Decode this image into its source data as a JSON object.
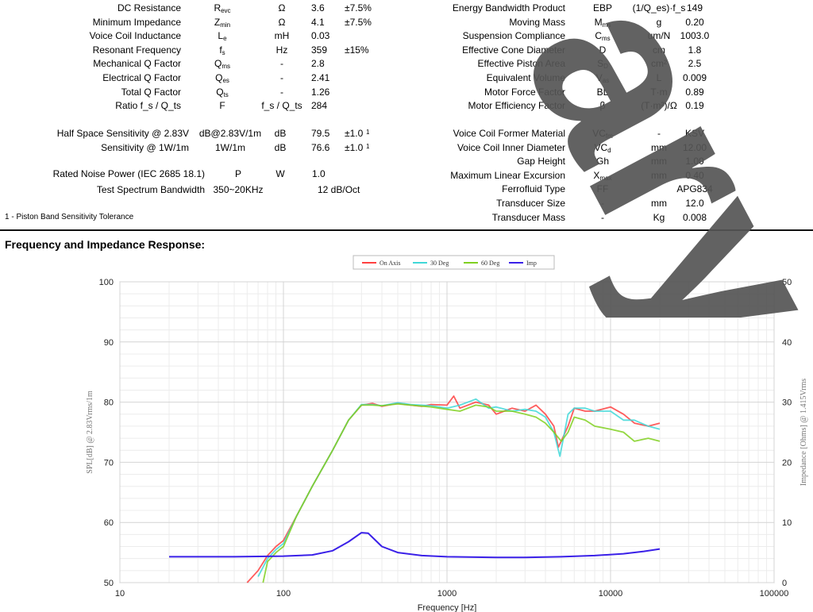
{
  "specs_left": [
    {
      "name": "DC Resistance",
      "sym": "R",
      "sub": "evc",
      "unit": "Ω",
      "value": "3.6",
      "tol": "±7.5%"
    },
    {
      "name": "Minimum Impedance",
      "sym": "Z",
      "sub": "min",
      "unit": "Ω",
      "value": "4.1",
      "tol": "±7.5%"
    },
    {
      "name": "Voice Coil Inductance",
      "sym": "L",
      "sub": "e",
      "unit": "mH",
      "value": "0.03",
      "tol": ""
    },
    {
      "name": "Resonant Frequency",
      "sym": "f",
      "sub": "s",
      "unit": "Hz",
      "value": "359",
      "tol": "±15%"
    },
    {
      "name": "Mechanical Q Factor",
      "sym": "Q",
      "sub": "ms",
      "unit": "-",
      "value": "2.8",
      "tol": ""
    },
    {
      "name": "Electrical Q Factor",
      "sym": "Q",
      "sub": "es",
      "unit": "-",
      "value": "2.41",
      "tol": ""
    },
    {
      "name": "Total Q Factor",
      "sym": "Q",
      "sub": "ts",
      "unit": "-",
      "value": "1.26",
      "tol": ""
    },
    {
      "name": "Ratio f_s / Q_ts",
      "sym": "F",
      "sub": "",
      "unit": "f_s / Q_ts",
      "value": "284",
      "tol": ""
    }
  ],
  "sensitivity": [
    {
      "name": "Half Space Sensitivity @ 2.83V",
      "sym": "dB@2.83V/1m",
      "unit": "dB",
      "value": "79.5",
      "tol": "±1.0",
      "note": "1"
    },
    {
      "name": "Sensitivity @ 1W/1m",
      "sym": "1W/1m",
      "unit": "dB",
      "value": "76.6",
      "tol": "±1.0",
      "note": "1"
    }
  ],
  "power": [
    {
      "name": "Rated Noise Power (IEC 2685 18.1)",
      "sym": "P",
      "unit": "W",
      "value": "1.0"
    },
    {
      "name": "Test Spectrum Bandwidth",
      "sym": "350~20KHz",
      "unit": "",
      "value": "12 dB/Oct"
    }
  ],
  "footnote": "1 - Piston Band Sensitivity Tolerance",
  "specs_right": [
    {
      "name": "Energy Bandwidth Product",
      "sym": "EBP",
      "sub": "",
      "unit": "(1/Q_es)·f_s",
      "value": "149"
    },
    {
      "name": "Moving Mass",
      "sym": "M",
      "sub": "ms",
      "unit": "g",
      "value": "0.20"
    },
    {
      "name": "Suspension Compliance",
      "sym": "C",
      "sub": "ms",
      "unit": "um/N",
      "value": "1003.0"
    },
    {
      "name": "Effective Cone Diameter",
      "sym": "D",
      "sub": "",
      "unit": "cm",
      "value": "1.8"
    },
    {
      "name": "Effective Piston Area",
      "sym": "S",
      "sub": "D",
      "unit": "cm²",
      "value": "2.5"
    },
    {
      "name": "Equivalent Volume",
      "sym": "V",
      "sub": "as",
      "unit": "L",
      "value": "0.009"
    },
    {
      "name": "Motor Force Factor",
      "sym": "BL",
      "sub": "",
      "unit": "T·m",
      "value": "0.89"
    },
    {
      "name": "Motor Efficiency Factor",
      "sym": "β",
      "sub": "",
      "unit": "(T·m²)/Ω",
      "value": "0.19"
    }
  ],
  "specs_right2": [
    {
      "name": "Voice Coil Former Material",
      "sym": "VC",
      "sub": "fm",
      "unit": "-",
      "value": "KSV"
    },
    {
      "name": "Voice Coil Inner Diameter",
      "sym": "VC",
      "sub": "d",
      "unit": "mm",
      "value": "12.00"
    },
    {
      "name": "Gap Height",
      "sym": "Gh",
      "sub": "",
      "unit": "mm",
      "value": "1.00"
    },
    {
      "name": "Maximum Linear Excursion",
      "sym": "X",
      "sub": "max",
      "unit": "mm",
      "value": "0.40"
    },
    {
      "name": "Ferrofluid Type",
      "sym": "FF",
      "sub": "",
      "unit": "",
      "value": "APG834"
    },
    {
      "name": "Transducer Size",
      "sym": "-",
      "sub": "",
      "unit": "mm",
      "value": "12.0"
    },
    {
      "name": "Transducer Mass",
      "sym": "-",
      "sub": "",
      "unit": "Kg",
      "value": "0.008"
    }
  ],
  "section_title": "Frequency and Impedance Response:",
  "watermark": "ary",
  "chart_data": {
    "type": "line",
    "xlabel": "Frequency [Hz]",
    "ylabel": "SPL[dB] @ 2.83Vrms/1m",
    "y2label": "Impedance [Ohms] @ 1.415Vrms",
    "xscale": "log",
    "xlim": [
      10,
      100000
    ],
    "ylim": [
      50,
      100
    ],
    "y2lim": [
      0,
      50
    ],
    "x_ticks": [
      "10",
      "100",
      "1000",
      "10000",
      "100000"
    ],
    "y_ticks": [
      "50",
      "60",
      "70",
      "80",
      "90",
      "100"
    ],
    "y2_ticks": [
      "0",
      "10",
      "20",
      "30",
      "40",
      "50"
    ],
    "legend_position": "top-center",
    "grid": true,
    "series": [
      {
        "name": "On Axis",
        "axis": "left",
        "color": "#ff4040",
        "points": [
          [
            60,
            50
          ],
          [
            70,
            52
          ],
          [
            80,
            54.5
          ],
          [
            90,
            56
          ],
          [
            100,
            57
          ],
          [
            120,
            61
          ],
          [
            150,
            66
          ],
          [
            200,
            72
          ],
          [
            250,
            77
          ],
          [
            300,
            79.5
          ],
          [
            350,
            79.8
          ],
          [
            400,
            79.3
          ],
          [
            500,
            79.8
          ],
          [
            600,
            79.5
          ],
          [
            700,
            79.3
          ],
          [
            800,
            79.6
          ],
          [
            1000,
            79.5
          ],
          [
            1100,
            81
          ],
          [
            1200,
            79
          ],
          [
            1500,
            80
          ],
          [
            1800,
            79.5
          ],
          [
            2000,
            78
          ],
          [
            2500,
            79
          ],
          [
            3000,
            78.5
          ],
          [
            3500,
            79.5
          ],
          [
            4000,
            78
          ],
          [
            4500,
            76
          ],
          [
            4800,
            72.5
          ],
          [
            5500,
            76
          ],
          [
            6000,
            79
          ],
          [
            7000,
            78.5
          ],
          [
            8000,
            78.5
          ],
          [
            10000,
            79.2
          ],
          [
            12000,
            78
          ],
          [
            14000,
            76.5
          ],
          [
            17000,
            76
          ],
          [
            20000,
            76.5
          ]
        ]
      },
      {
        "name": "30 Deg",
        "axis": "left",
        "color": "#40d8d8",
        "points": [
          [
            70,
            51
          ],
          [
            80,
            54
          ],
          [
            90,
            55.5
          ],
          [
            100,
            56.5
          ],
          [
            120,
            61
          ],
          [
            150,
            66
          ],
          [
            200,
            72
          ],
          [
            250,
            77
          ],
          [
            300,
            79.6
          ],
          [
            350,
            79.6
          ],
          [
            400,
            79.4
          ],
          [
            500,
            79.9
          ],
          [
            600,
            79.6
          ],
          [
            800,
            79.4
          ],
          [
            1000,
            79
          ],
          [
            1200,
            79.5
          ],
          [
            1500,
            80.5
          ],
          [
            1800,
            79
          ],
          [
            2000,
            79.2
          ],
          [
            2500,
            78.5
          ],
          [
            3000,
            78.8
          ],
          [
            3500,
            78.5
          ],
          [
            4000,
            77.5
          ],
          [
            4500,
            75
          ],
          [
            4900,
            71
          ],
          [
            5500,
            78
          ],
          [
            6000,
            79
          ],
          [
            7000,
            79
          ],
          [
            8000,
            78.5
          ],
          [
            10000,
            78.5
          ],
          [
            12000,
            77
          ],
          [
            14000,
            77
          ],
          [
            17000,
            76
          ],
          [
            20000,
            75.5
          ]
        ]
      },
      {
        "name": "60 Deg",
        "axis": "left",
        "color": "#80d020",
        "points": [
          [
            75,
            50
          ],
          [
            80,
            53.5
          ],
          [
            90,
            55
          ],
          [
            100,
            56
          ],
          [
            120,
            61
          ],
          [
            150,
            66
          ],
          [
            200,
            72
          ],
          [
            250,
            77
          ],
          [
            300,
            79.5
          ],
          [
            350,
            79.5
          ],
          [
            400,
            79.4
          ],
          [
            500,
            79.7
          ],
          [
            600,
            79.5
          ],
          [
            800,
            79.2
          ],
          [
            1000,
            78.8
          ],
          [
            1200,
            78.5
          ],
          [
            1500,
            79.5
          ],
          [
            1800,
            79.2
          ],
          [
            2000,
            78.5
          ],
          [
            2500,
            78.5
          ],
          [
            3000,
            78
          ],
          [
            3500,
            77.5
          ],
          [
            4000,
            76.5
          ],
          [
            4500,
            75
          ],
          [
            5000,
            73.5
          ],
          [
            5500,
            75
          ],
          [
            6000,
            77.5
          ],
          [
            7000,
            77
          ],
          [
            8000,
            76
          ],
          [
            10000,
            75.5
          ],
          [
            12000,
            75
          ],
          [
            14000,
            73.5
          ],
          [
            17000,
            74
          ],
          [
            20000,
            73.5
          ]
        ]
      },
      {
        "name": "Imp",
        "axis": "right",
        "color": "#3a20e8",
        "points": [
          [
            20,
            4.3
          ],
          [
            50,
            4.3
          ],
          [
            100,
            4.4
          ],
          [
            150,
            4.6
          ],
          [
            200,
            5.3
          ],
          [
            250,
            6.8
          ],
          [
            300,
            8.3
          ],
          [
            330,
            8.2
          ],
          [
            360,
            7.2
          ],
          [
            400,
            6
          ],
          [
            500,
            5
          ],
          [
            700,
            4.5
          ],
          [
            1000,
            4.3
          ],
          [
            2000,
            4.2
          ],
          [
            3000,
            4.2
          ],
          [
            5000,
            4.3
          ],
          [
            8000,
            4.5
          ],
          [
            12000,
            4.8
          ],
          [
            16000,
            5.2
          ],
          [
            20000,
            5.6
          ]
        ]
      }
    ]
  }
}
